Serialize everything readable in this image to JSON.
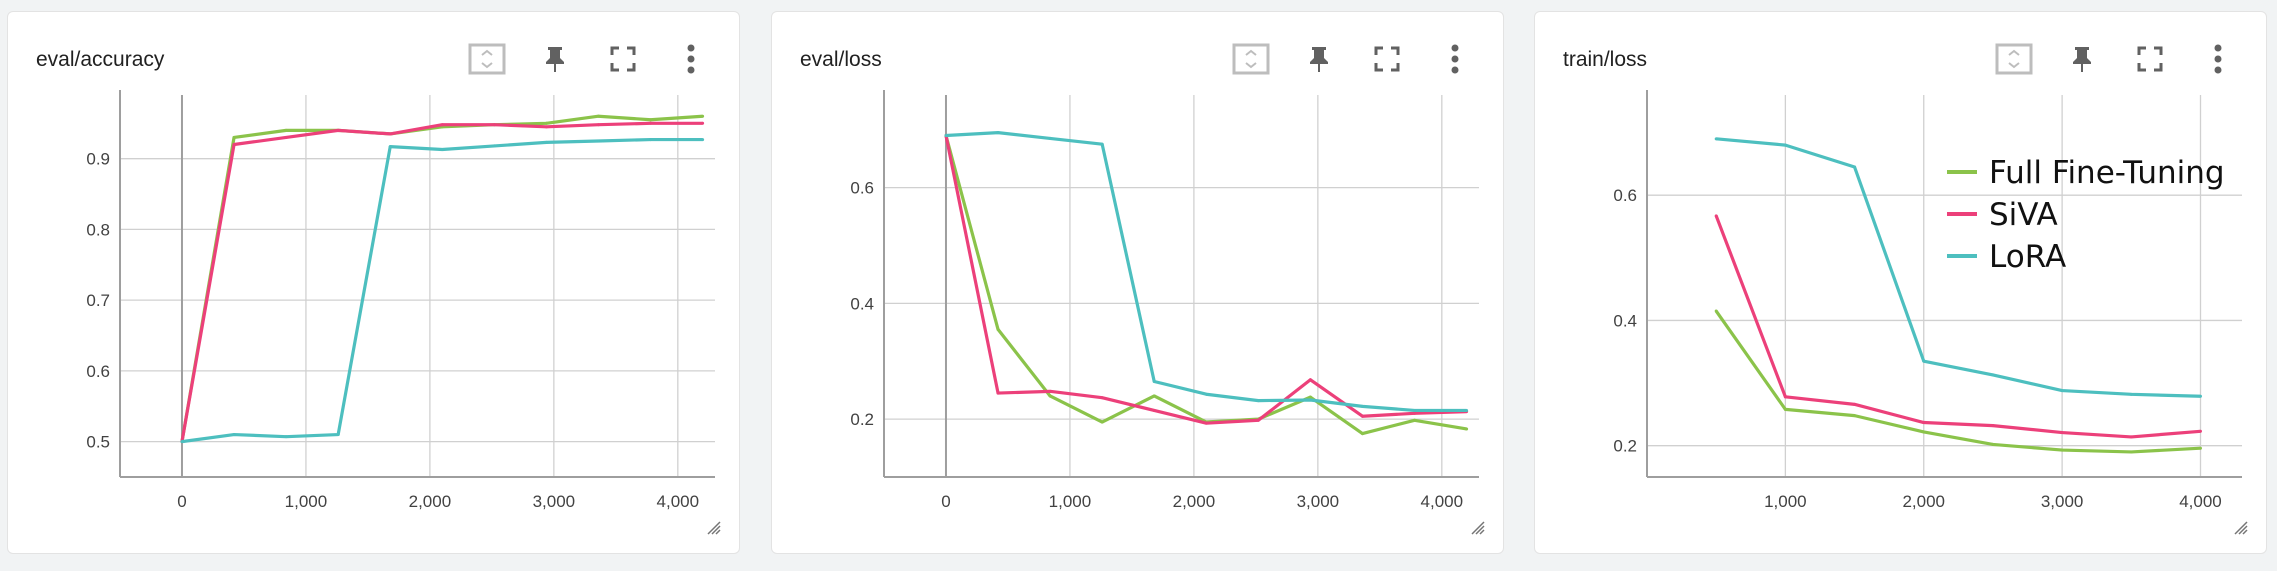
{
  "cards": [
    {
      "title": "eval/accuracy",
      "toolbar": {
        "fit_icon": "fit-domain-icon",
        "pin_icon": "pin-icon",
        "fullscreen_icon": "fullscreen-icon",
        "menu_icon": "more-vert-icon"
      }
    },
    {
      "title": "eval/loss",
      "toolbar": {
        "fit_icon": "fit-domain-icon",
        "pin_icon": "pin-icon",
        "fullscreen_icon": "fullscreen-icon",
        "menu_icon": "more-vert-icon"
      }
    },
    {
      "title": "train/loss",
      "toolbar": {
        "fit_icon": "fit-domain-icon",
        "pin_icon": "pin-icon",
        "fullscreen_icon": "fullscreen-icon",
        "menu_icon": "more-vert-icon"
      }
    }
  ],
  "colors": {
    "full_ft": "#8bc34a",
    "siva": "#ec407a",
    "lora": "#4dbfbf",
    "grid": "#d0d0d0",
    "axis": "#9e9e9e",
    "tick": "#424242"
  },
  "chart_data": [
    {
      "type": "line",
      "title": "eval/accuracy",
      "xlim": [
        -500,
        4300
      ],
      "ylim": [
        0.45,
        0.99
      ],
      "xticks": [
        0,
        1000,
        2000,
        3000,
        4000
      ],
      "xtick_labels": [
        "0",
        "1,000",
        "2,000",
        "3,000",
        "4,000"
      ],
      "yticks": [
        0.5,
        0.6,
        0.7,
        0.8,
        0.9
      ],
      "ytick_labels": [
        "0.5",
        "0.6",
        "0.7",
        "0.8",
        "0.9"
      ],
      "grid": true,
      "series": [
        {
          "key": "full_ft",
          "x": [
            0,
            420,
            840,
            1260,
            1680,
            2100,
            2520,
            2940,
            3360,
            3780,
            4200
          ],
          "y": [
            0.5,
            0.93,
            0.94,
            0.94,
            0.935,
            0.945,
            0.948,
            0.95,
            0.96,
            0.955,
            0.96
          ]
        },
        {
          "key": "siva",
          "x": [
            0,
            420,
            840,
            1260,
            1680,
            2100,
            2520,
            2940,
            3360,
            3780,
            4200
          ],
          "y": [
            0.5,
            0.92,
            0.93,
            0.94,
            0.935,
            0.948,
            0.948,
            0.945,
            0.948,
            0.95,
            0.95
          ]
        },
        {
          "key": "lora",
          "x": [
            0,
            420,
            840,
            1260,
            1680,
            2100,
            2520,
            2940,
            3360,
            3780,
            4200
          ],
          "y": [
            0.5,
            0.51,
            0.507,
            0.51,
            0.917,
            0.913,
            0.918,
            0.923,
            0.925,
            0.927,
            0.927
          ]
        }
      ]
    },
    {
      "type": "line",
      "title": "eval/loss",
      "xlim": [
        -500,
        4300
      ],
      "ylim": [
        0.1,
        0.76
      ],
      "xticks": [
        0,
        1000,
        2000,
        3000,
        4000
      ],
      "xtick_labels": [
        "0",
        "1,000",
        "2,000",
        "3,000",
        "4,000"
      ],
      "yticks": [
        0.2,
        0.4,
        0.6
      ],
      "ytick_labels": [
        "0.2",
        "0.4",
        "0.6"
      ],
      "grid": true,
      "series": [
        {
          "key": "full_ft",
          "x": [
            0,
            420,
            840,
            1260,
            1680,
            2100,
            2520,
            2940,
            3360,
            3780,
            4200
          ],
          "y": [
            0.69,
            0.355,
            0.24,
            0.195,
            0.24,
            0.195,
            0.2,
            0.238,
            0.175,
            0.198,
            0.183
          ]
        },
        {
          "key": "siva",
          "x": [
            0,
            420,
            840,
            1260,
            1680,
            2100,
            2520,
            2940,
            3360,
            3780,
            4200
          ],
          "y": [
            0.69,
            0.245,
            0.248,
            0.237,
            0.215,
            0.193,
            0.198,
            0.268,
            0.205,
            0.21,
            0.213
          ]
        },
        {
          "key": "lora",
          "x": [
            0,
            420,
            840,
            1260,
            1680,
            2100,
            2520,
            2940,
            3360,
            3780,
            4200
          ],
          "y": [
            0.69,
            0.695,
            0.685,
            0.675,
            0.265,
            0.243,
            0.232,
            0.233,
            0.222,
            0.215,
            0.215
          ]
        }
      ]
    },
    {
      "type": "line",
      "title": "train/loss",
      "xlim": [
        0,
        4300
      ],
      "ylim": [
        0.15,
        0.76
      ],
      "xticks": [
        1000,
        2000,
        3000,
        4000
      ],
      "xtick_labels": [
        "1,000",
        "2,000",
        "3,000",
        "4,000"
      ],
      "yticks": [
        0.2,
        0.4,
        0.6
      ],
      "ytick_labels": [
        "0.2",
        "0.4",
        "0.6"
      ],
      "grid": true,
      "legend_position": "top-right",
      "legend": [
        "Full Fine-Tuning",
        "SiVA",
        "LoRA"
      ],
      "series": [
        {
          "key": "full_ft",
          "name": "Full Fine-Tuning",
          "x": [
            500,
            1000,
            1500,
            2000,
            2500,
            3000,
            3500,
            4000
          ],
          "y": [
            0.415,
            0.258,
            0.248,
            0.222,
            0.202,
            0.193,
            0.19,
            0.196
          ]
        },
        {
          "key": "siva",
          "name": "SiVA",
          "x": [
            500,
            1000,
            1500,
            2000,
            2500,
            3000,
            3500,
            4000
          ],
          "y": [
            0.567,
            0.278,
            0.266,
            0.237,
            0.232,
            0.221,
            0.214,
            0.223
          ]
        },
        {
          "key": "lora",
          "name": "LoRA",
          "x": [
            500,
            1000,
            1500,
            2000,
            2500,
            3000,
            3500,
            4000
          ],
          "y": [
            0.69,
            0.68,
            0.645,
            0.335,
            0.313,
            0.288,
            0.282,
            0.279
          ]
        }
      ]
    }
  ]
}
